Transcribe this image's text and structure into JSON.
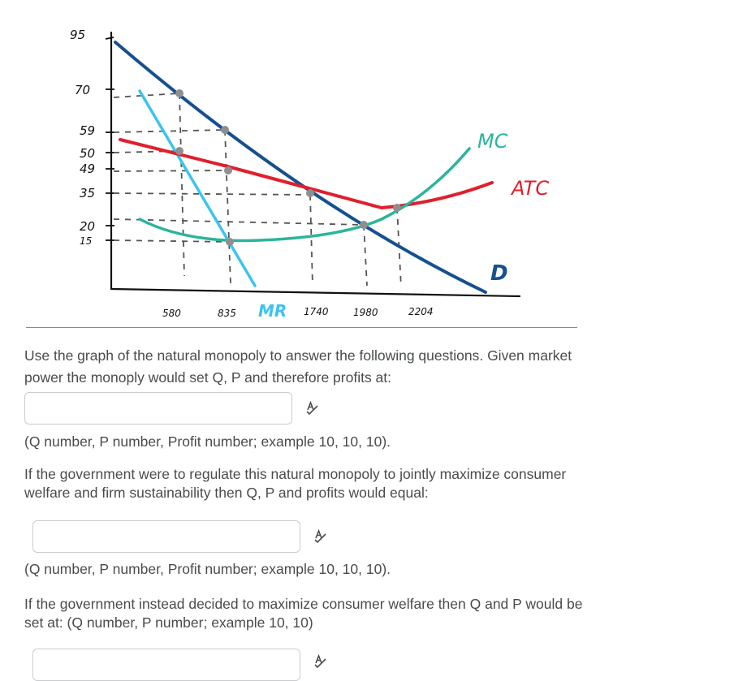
{
  "graph": {
    "price_labels": [
      "95",
      "70",
      "59",
      "50",
      "49",
      "35",
      "20",
      "15"
    ],
    "quantity_labels": [
      "580",
      "835",
      "1740",
      "1980",
      "2204"
    ],
    "curve_labels": {
      "mc": "MC",
      "atc": "ATC",
      "demand": "D",
      "mr": "MR"
    },
    "colors": {
      "demand": "#16508f",
      "mr": "#3cc3f0",
      "mc": "#2bb59a",
      "atc": "#e01f2d",
      "points": "#8f8f8f",
      "axes": "#111111"
    }
  },
  "questions": [
    {
      "prompt": "Use the graph of the natural monopoly to answer the following questions. Given market power the monoply would set Q, P and therefore profits at:",
      "answer_value": "",
      "hint": "(Q number, P number, Profit number; example 10, 10, 10)."
    },
    {
      "prompt": "If the government were to regulate this natural monopoly to jointly maximize consumer welfare and firm sustainability then Q, P and profits would equal:",
      "answer_value": "",
      "hint": "(Q number, P number, Profit number; example 10, 10, 10)."
    },
    {
      "prompt": "If the government instead decided to maximize consumer welfare then Q and P would be set at: (Q number, P number; example 10, 10)",
      "answer_value": ""
    }
  ],
  "icons": {
    "spellcheck": "spellcheck-icon"
  }
}
